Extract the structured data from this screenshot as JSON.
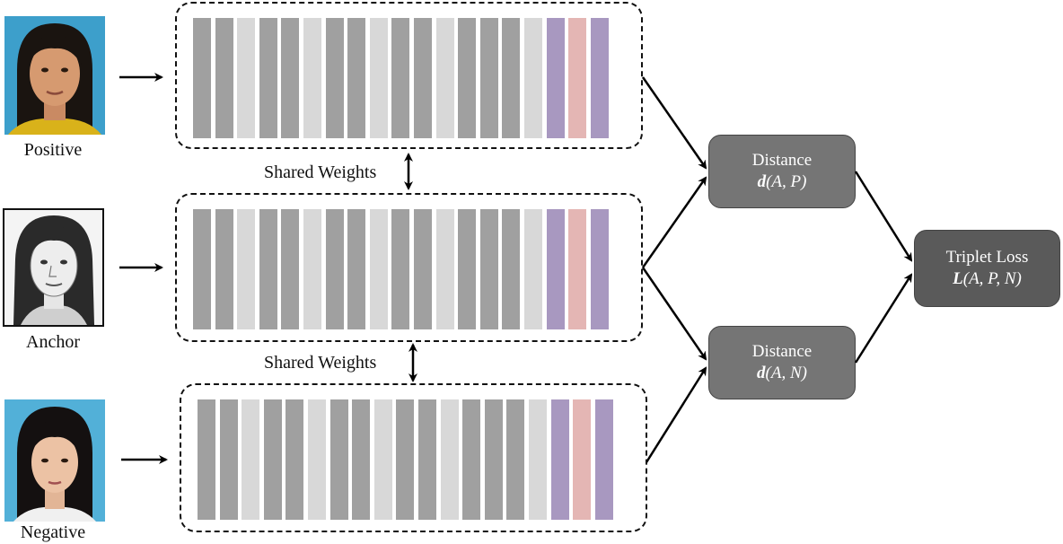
{
  "inputs": {
    "positive": {
      "caption": "Positive"
    },
    "anchor": {
      "caption": "Anchor"
    },
    "negative": {
      "caption": "Negative"
    }
  },
  "shared_weights": [
    "Shared Weights",
    "Shared Weights"
  ],
  "network": {
    "bar_pattern": [
      "mid",
      "mid",
      "light",
      "mid",
      "mid",
      "light",
      "mid",
      "mid",
      "light",
      "mid",
      "mid",
      "light",
      "mid",
      "mid",
      "mid",
      "light",
      "purple",
      "pink",
      "purple"
    ],
    "colors": {
      "mid": "#a0a0a0",
      "light": "#d8d8d8",
      "purple": "#a898c0",
      "pink": "#e4b6b4"
    }
  },
  "distance_ap": {
    "title": "Distance",
    "fn": "d",
    "args": "(A, P)"
  },
  "distance_an": {
    "title": "Distance",
    "fn": "d",
    "args": "(A, N)"
  },
  "loss": {
    "title": "Triplet Loss",
    "fn": "L",
    "args": "(A, P, N)"
  },
  "colors": {
    "node": "#757575",
    "loss_node": "#5a5a5a",
    "photo_bg": "#4aa3c9"
  }
}
